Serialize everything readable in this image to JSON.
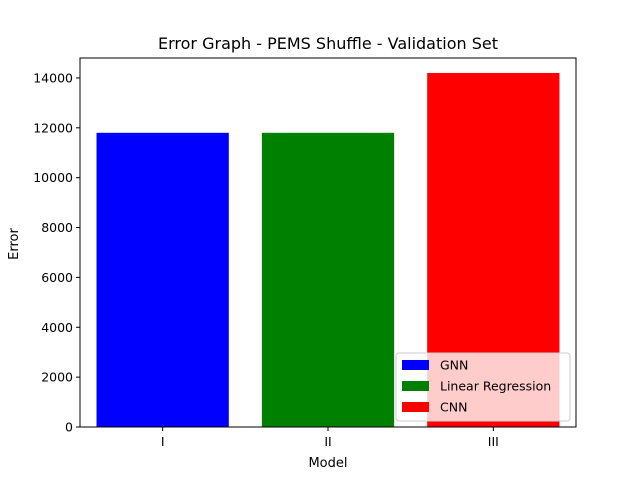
{
  "chart_data": {
    "type": "bar",
    "title": "Error Graph - PEMS Shuffle - Validation Set",
    "xlabel": "Model",
    "ylabel": "Error",
    "categories": [
      "I",
      "II",
      "III"
    ],
    "values": [
      11800,
      11800,
      14200
    ],
    "bar_colors": [
      "#0000ff",
      "#008000",
      "#ff0000"
    ],
    "ylim": [
      0,
      14800
    ],
    "yticks": [
      0,
      2000,
      4000,
      6000,
      8000,
      10000,
      12000,
      14000
    ],
    "grid": false,
    "legend": {
      "placement": "lower-right",
      "entries": [
        {
          "label": "GNN",
          "color": "#0000ff"
        },
        {
          "label": "Linear Regression",
          "color": "#008000"
        },
        {
          "label": "CNN",
          "color": "#ff0000"
        }
      ]
    }
  }
}
